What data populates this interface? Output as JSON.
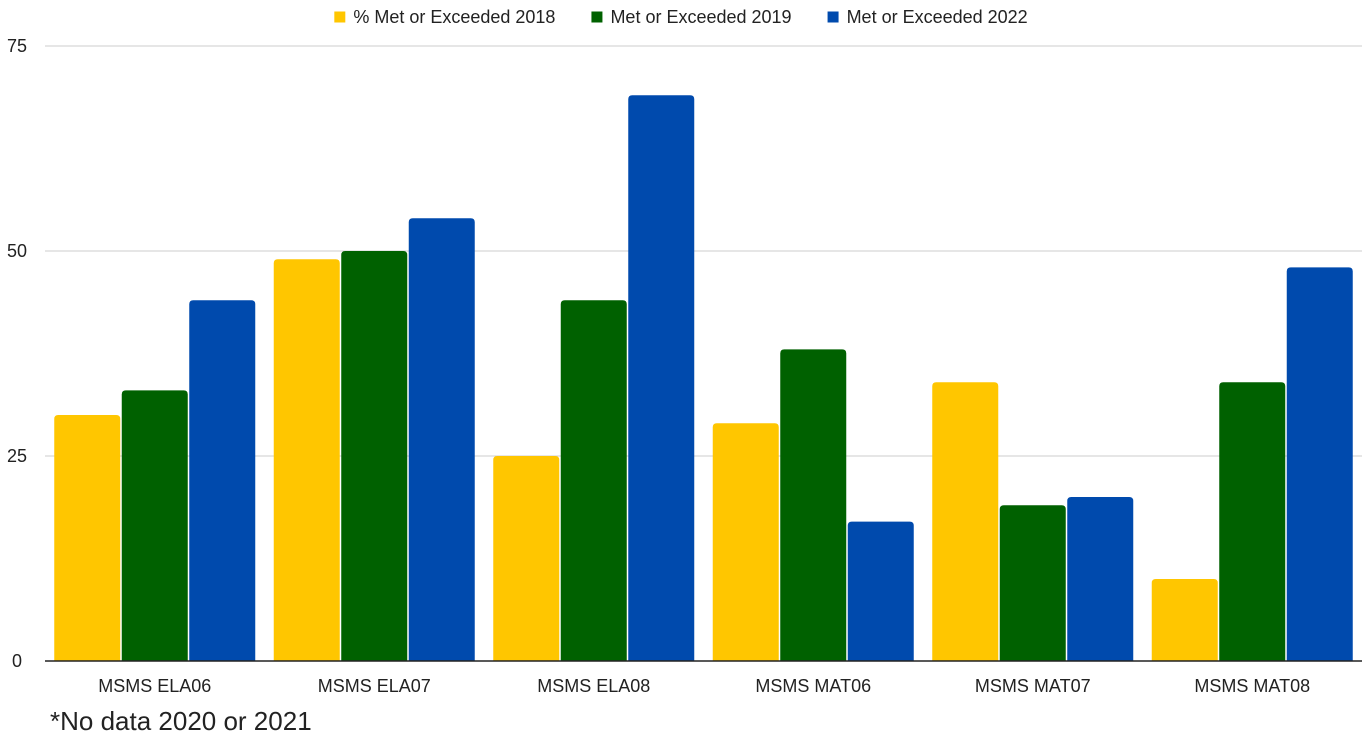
{
  "chart_data": {
    "type": "bar",
    "title": "",
    "xlabel": "",
    "ylabel": "",
    "ylim": [
      0,
      75
    ],
    "yticks": [
      0,
      25,
      50,
      75
    ],
    "grid": true,
    "legend_position": "top-center",
    "categories": [
      "MSMS ELA06",
      "MSMS ELA07",
      "MSMS ELA08",
      "MSMS MAT06",
      "MSMS MAT07",
      "MSMS MAT08"
    ],
    "series": [
      {
        "name": "% Met or Exceeded 2018",
        "color": "#FFC600",
        "values": [
          30,
          49,
          25,
          29,
          34,
          10
        ]
      },
      {
        "name": "Met or Exceeded 2019",
        "color": "#006100",
        "values": [
          33,
          50,
          44,
          38,
          19,
          34
        ]
      },
      {
        "name": "Met or Exceeded 2022",
        "color": "#004AAD",
        "values": [
          44,
          54,
          69,
          17,
          20,
          48
        ]
      }
    ]
  },
  "footnote": "*No data 2020 or 2021",
  "colors": {
    "grid": "#cccccc",
    "axis": "#222222",
    "text": "#222222"
  }
}
